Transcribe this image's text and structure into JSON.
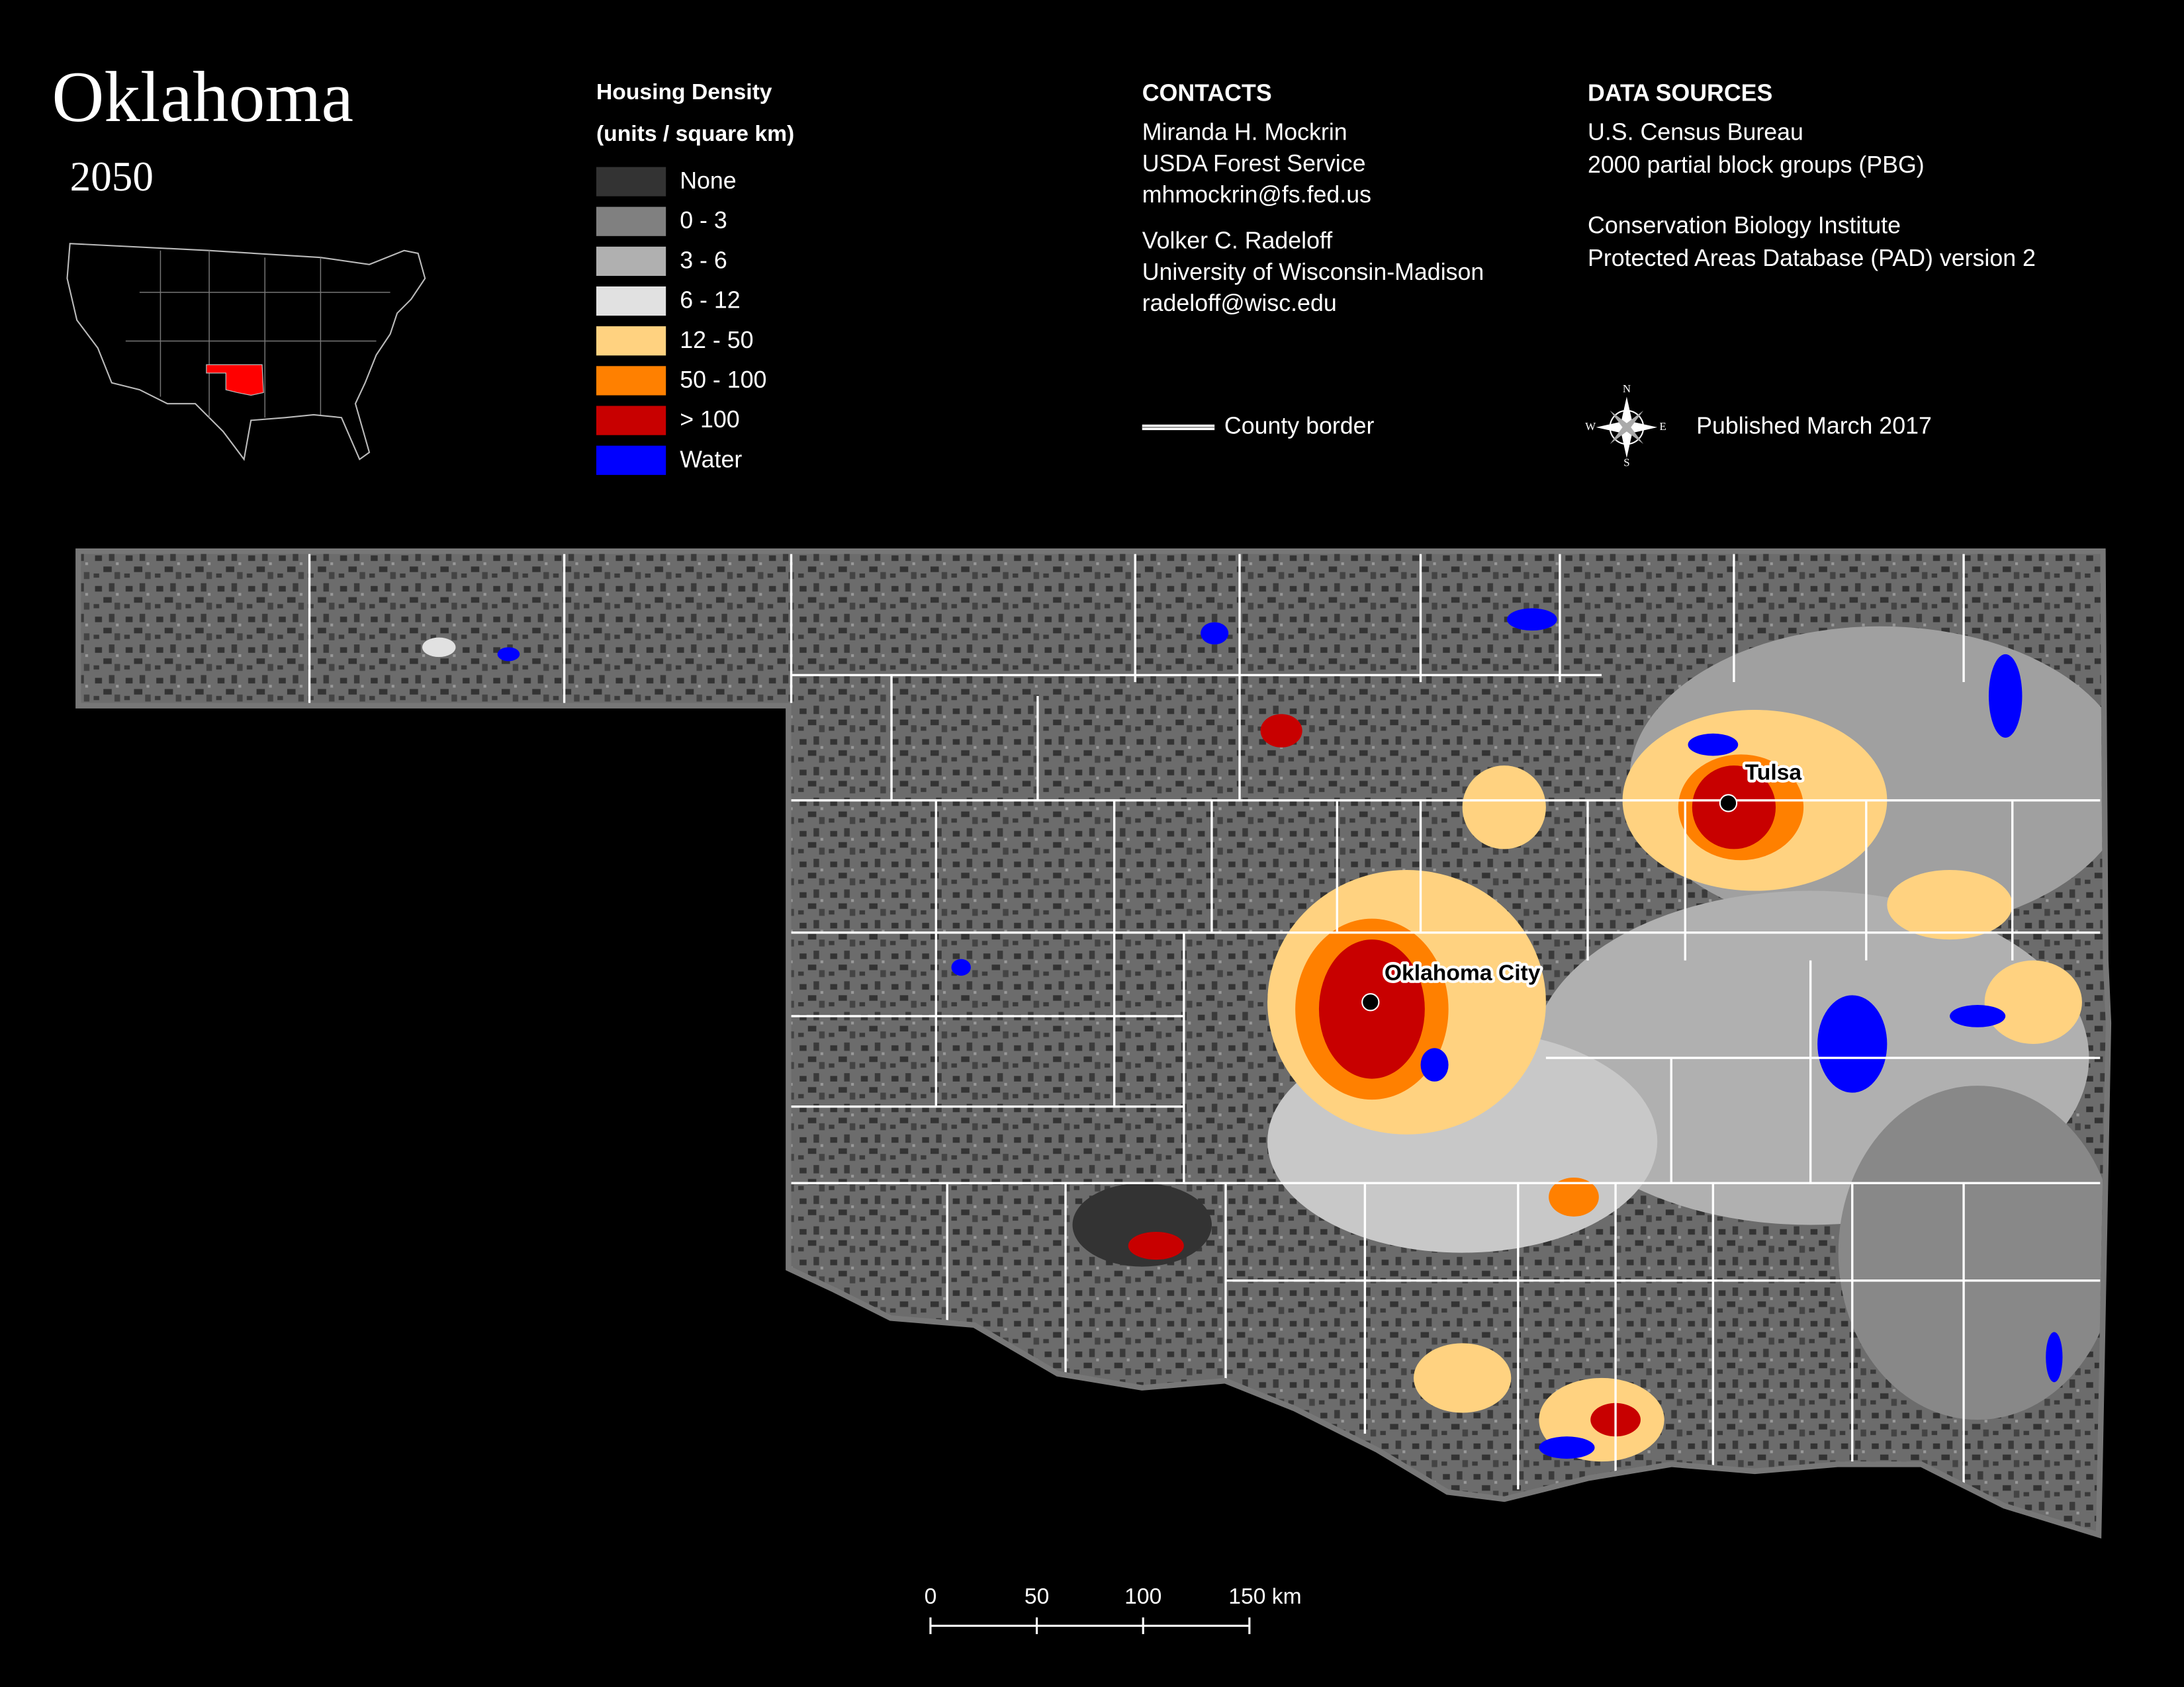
{
  "title": "Oklahoma",
  "subtitle": "2050",
  "legend": {
    "title": "Housing Density",
    "subtitle": "(units / square km)",
    "items": [
      {
        "label": "None",
        "color": "#333333"
      },
      {
        "label": "0 - 3",
        "color": "#808080"
      },
      {
        "label": "3 - 6",
        "color": "#b0b0b0"
      },
      {
        "label": "6 - 12",
        "color": "#e1e1e1"
      },
      {
        "label": "12 - 50",
        "color": "#ffd280"
      },
      {
        "label": "50 - 100",
        "color": "#ff8000"
      },
      {
        "label": "> 100",
        "color": "#c80000"
      },
      {
        "label": "Water",
        "color": "#0000ff"
      }
    ]
  },
  "contacts": {
    "heading": "CONTACTS",
    "people": [
      [
        "Miranda H. Mockrin",
        "USDA Forest Service",
        "mhmockrin@fs.fed.us"
      ],
      [
        "Volker C. Radeloff",
        "University of Wisconsin-Madison",
        "radeloff@wisc.edu"
      ]
    ]
  },
  "data_sources": {
    "heading": "DATA SOURCES",
    "sources": [
      [
        "U.S. Census Bureau",
        "2000 partial block groups (PBG)"
      ],
      [
        "Conservation Biology Institute",
        "Protected Areas Database (PAD) version 2"
      ]
    ]
  },
  "county_border": "County border",
  "published": "Published March 2017",
  "compass": {
    "N": "N",
    "E": "E",
    "S": "S",
    "W": "W"
  },
  "cities": [
    "Tulsa",
    "Oklahoma City"
  ],
  "scale_bar": {
    "ticks": [
      0,
      50,
      100,
      {
        "value": 150,
        "label": "150 km"
      }
    ]
  }
}
